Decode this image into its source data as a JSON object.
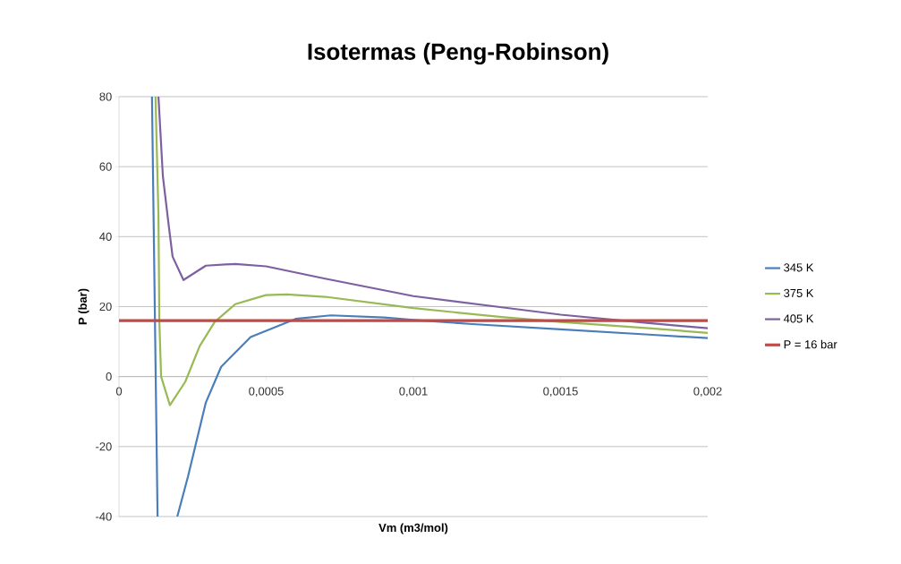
{
  "chart_data": {
    "type": "line",
    "title": "Isotermas (Peng-Robinson)",
    "xlabel": "Vm (m3/mol)",
    "ylabel": "P (bar)",
    "xlim": [
      0,
      0.002
    ],
    "ylim": [
      -40,
      80
    ],
    "xticks": [
      {
        "value": 0,
        "label": "0"
      },
      {
        "value": 0.0005,
        "label": "0,0005"
      },
      {
        "value": 0.001,
        "label": "0,001"
      },
      {
        "value": 0.0015,
        "label": "0,0015"
      },
      {
        "value": 0.002,
        "label": "0,002"
      }
    ],
    "yticks": [
      -40,
      -20,
      0,
      20,
      40,
      60,
      80
    ],
    "grid": "y",
    "legend": "right",
    "marker": "none",
    "line_style": "solid",
    "series": [
      {
        "name": "345 K",
        "color": "#4a7ebb",
        "x": [
          0.000112,
          0.000131,
          0.000165,
          0.000198,
          0.000234,
          0.000295,
          0.000347,
          0.000447,
          0.0006,
          0.00072,
          0.0009,
          0.001,
          0.0012,
          0.0015,
          0.0018,
          0.002
        ],
        "values": [
          80,
          -40,
          null,
          -40,
          -28.7,
          -7.4,
          2.8,
          11.3,
          16.5,
          17.5,
          16.9,
          16.2,
          15,
          13.5,
          12,
          11
        ]
      },
      {
        "name": "375 K",
        "color": "#98b954",
        "x": [
          0.000124,
          0.000134,
          0.000137,
          0.000143,
          0.000173,
          0.000225,
          0.000274,
          0.000325,
          0.000395,
          0.000499,
          0.00057,
          0.0007,
          0.001,
          0.0013,
          0.0015,
          0.0018,
          0.002
        ],
        "values": [
          80,
          46,
          16,
          0,
          -8.2,
          -1.5,
          8.7,
          15.6,
          20.7,
          23.3,
          23.5,
          22.8,
          19.6,
          17,
          15.6,
          13.8,
          12.5
        ]
      },
      {
        "name": "405 K",
        "color": "#7d60a0",
        "x": [
          0.000134,
          0.000149,
          0.000167,
          0.000182,
          0.000219,
          0.000295,
          0.000395,
          0.0005,
          0.0007,
          0.001,
          0.0013,
          0.0015,
          0.0018,
          0.002
        ],
        "values": [
          80,
          57.3,
          44.5,
          34.3,
          27.6,
          31.7,
          32.2,
          31.5,
          28,
          23,
          19.8,
          17.7,
          15.3,
          13.8
        ]
      },
      {
        "name": "P = 16 bar",
        "color": "#be4b48",
        "x": [
          0,
          0.002
        ],
        "values": [
          16,
          16
        ]
      }
    ]
  }
}
